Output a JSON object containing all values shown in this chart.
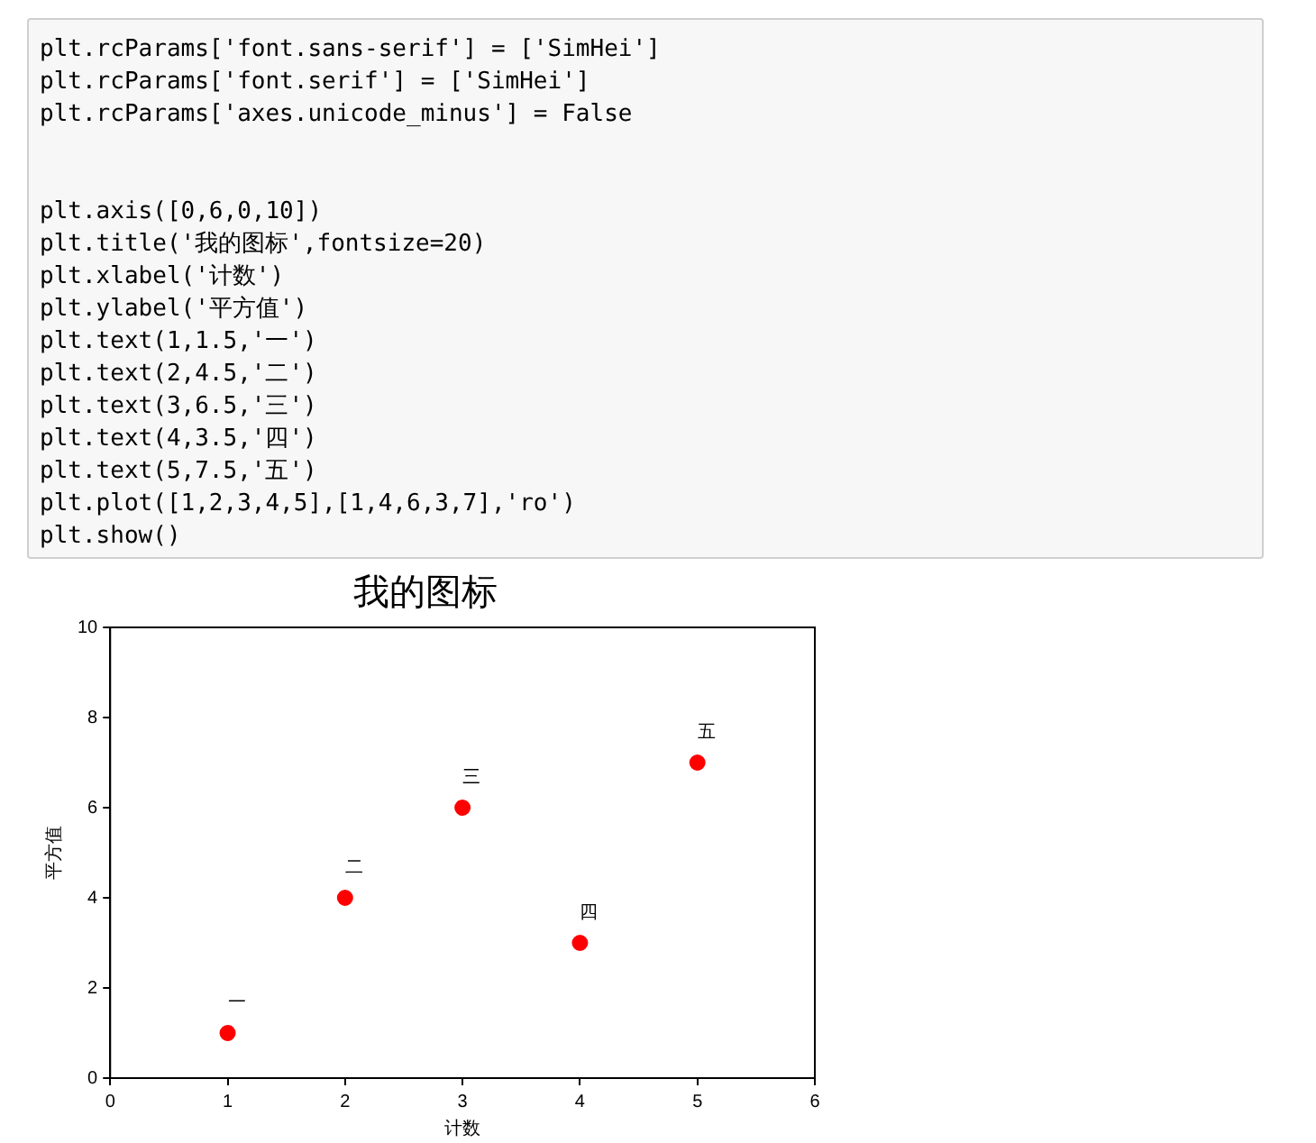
{
  "chart_data": {
    "type": "scatter",
    "title": "我的图标",
    "xlabel": "计数",
    "ylabel": "平方值",
    "x": [
      1,
      2,
      3,
      4,
      5
    ],
    "series": [
      {
        "color": "#ff0000",
        "values": [
          1,
          4,
          6,
          3,
          7
        ]
      }
    ],
    "marker": "circle",
    "xlim": [
      0,
      6
    ],
    "xticks": [
      0,
      1,
      2,
      3,
      4,
      5,
      6
    ],
    "ylim": [
      0,
      10
    ],
    "yticks": [
      0,
      2,
      4,
      6,
      8,
      10
    ],
    "grid": false,
    "legend": false,
    "annotations": [
      {
        "text": "一",
        "x": 1,
        "y": 1
      },
      {
        "text": "二",
        "x": 2,
        "y": 4
      },
      {
        "text": "三",
        "x": 3,
        "y": 6
      },
      {
        "text": "四",
        "x": 4,
        "y": 3
      },
      {
        "text": "五",
        "x": 5,
        "y": 7
      },
      "plt.rcParams['font.sans-serif'] = ['SimHei']",
      "plt.rcParams['font.serif'] = ['SimHei']",
      "plt.rcParams['axes.unicode_minus'] = False",
      "plt.axis([0,6,0,10])",
      "plt.title('我的图标',fontsize=20)",
      "plt.xlabel('计数')",
      "plt.ylabel('平方值')",
      "plt.text(1,1.5,'一')",
      "plt.text(2,4.5,'二')",
      "plt.text(3,6.5,'三')",
      "plt.text(4,3.5,'四')",
      "plt.text(5,7.5,'五')",
      "plt.plot([1,2,3,4,5],[1,4,6,3,7],'ro')",
      "plt.show()"
    ]
  }
}
